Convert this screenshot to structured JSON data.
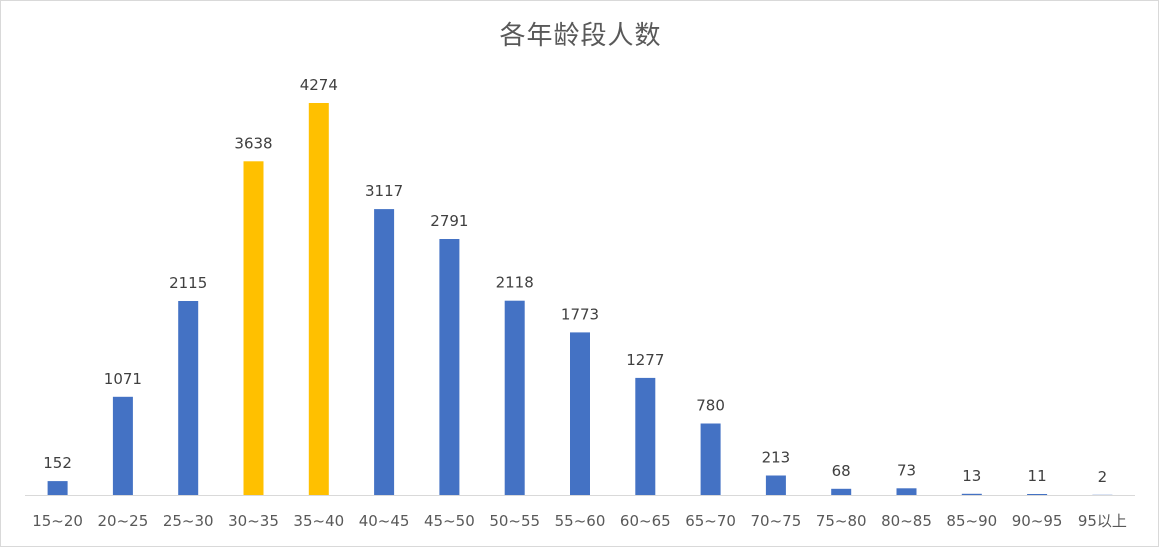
{
  "chart_data": {
    "type": "bar",
    "title": "各年龄段人数",
    "categories": [
      "15~20",
      "20~25",
      "25~30",
      "30~35",
      "35~40",
      "40~45",
      "45~50",
      "50~55",
      "55~60",
      "60~65",
      "65~70",
      "70~75",
      "75~80",
      "80~85",
      "85~90",
      "90~95",
      "95以上"
    ],
    "values": [
      152,
      1071,
      2115,
      3638,
      4274,
      3117,
      2791,
      2118,
      1773,
      1277,
      780,
      213,
      68,
      73,
      13,
      11,
      2
    ],
    "highlighted_categories": [
      "30~35",
      "35~40"
    ],
    "ylim": [
      0,
      4274
    ],
    "grid": false,
    "legend": "none",
    "colors": {
      "default": "#4472C4",
      "highlight": "#FFC000",
      "axis": "#d9d9d9"
    }
  }
}
